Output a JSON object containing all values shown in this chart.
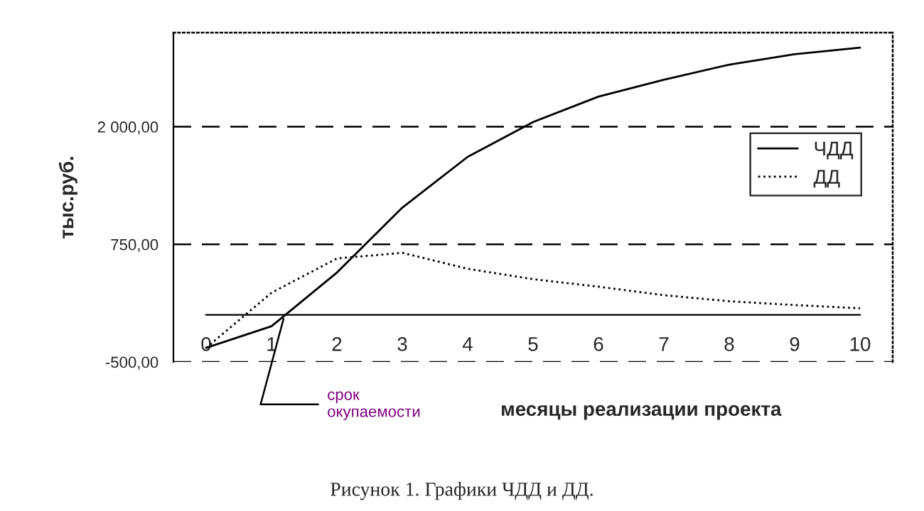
{
  "chart_data": {
    "type": "line",
    "xlabel": "месяцы реализации проекта",
    "ylabel": "тыс.руб.",
    "x": [
      0,
      1,
      2,
      3,
      4,
      5,
      6,
      7,
      8,
      9,
      10
    ],
    "series": [
      {
        "name": "ЧДД",
        "color": "#000000",
        "line_style": "solid",
        "values": [
          -350,
          -120,
          450,
          1140,
          1680,
          2050,
          2320,
          2500,
          2660,
          2770,
          2840
        ]
      },
      {
        "name": "ДД",
        "color": "#000000",
        "line_style": "dotted",
        "values": [
          -350,
          235,
          600,
          660,
          490,
          380,
          300,
          210,
          145,
          105,
          70
        ]
      }
    ],
    "xlim": [
      -0.5,
      10.5
    ],
    "xticks": [
      0,
      1,
      2,
      3,
      4,
      5,
      6,
      7,
      8,
      9,
      10
    ],
    "ylim": [
      -500,
      3000
    ],
    "yticks": [
      {
        "value": -500,
        "label": "-500,00"
      },
      {
        "value": 750,
        "label": "750,00"
      },
      {
        "value": 2000,
        "label": "2 000,00"
      }
    ],
    "grid": "y",
    "legend": "right",
    "marker": "none",
    "annotations": [
      {
        "text": "срок\nокупаемости",
        "x": 1.2,
        "y": 0
      },
      "Рисунок 1. Графики ЧДД и ДД."
    ]
  }
}
